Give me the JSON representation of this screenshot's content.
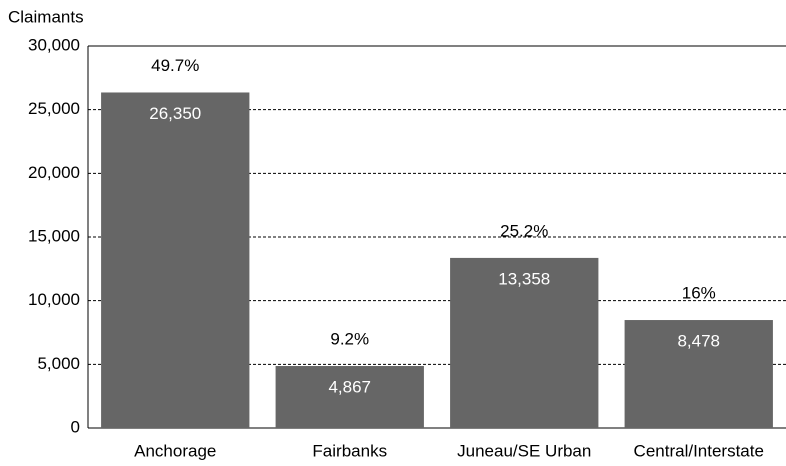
{
  "chart_data": {
    "type": "bar",
    "y_label": "Claimants",
    "categories": [
      "Anchorage",
      "Fairbanks",
      "Juneau/SE Urban",
      "Central/Interstate"
    ],
    "values": [
      26350,
      4867,
      13358,
      8478
    ],
    "value_labels": [
      "26,350",
      "4,867",
      "13,358",
      "8,478"
    ],
    "annotations": [
      "49.7%",
      "9.2%",
      "25.2%",
      "16%"
    ],
    "color": "#666666",
    "ylim": [
      0,
      30000
    ],
    "yticks": [
      0,
      {
        "value": 5000,
        "label": "5,000"
      },
      {
        "value": 10000,
        "label": "10,000"
      },
      {
        "value": 15000,
        "label": "15,000"
      },
      {
        "value": 20000,
        "label": "20,000"
      },
      {
        "value": 25000,
        "label": "25,000"
      },
      {
        "value": 30000,
        "label": "30,000"
      }
    ],
    "grid": true
  }
}
